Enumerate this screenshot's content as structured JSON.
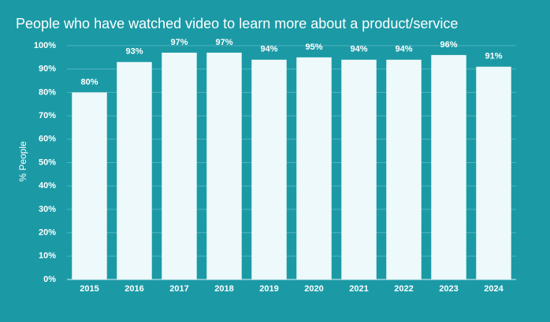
{
  "chart_data": {
    "type": "bar",
    "title": "People who have watched video to learn more about a product/service",
    "y_label": "% People",
    "categories": [
      "2015",
      "2016",
      "2017",
      "2018",
      "2019",
      "2020",
      "2021",
      "2022",
      "2023",
      "2024"
    ],
    "values": [
      80,
      93,
      97,
      97,
      94,
      95,
      94,
      94,
      96,
      91
    ],
    "value_labels": [
      "80%",
      "93%",
      "97%",
      "97%",
      "94%",
      "95%",
      "94%",
      "94%",
      "96%",
      "91%"
    ],
    "color": "#edf9fa",
    "ylim": [
      0,
      100
    ],
    "yticks": [
      {
        "value": 0,
        "label": "0%"
      },
      {
        "value": 10,
        "label": "10%"
      },
      {
        "value": 20,
        "label": "20%"
      },
      {
        "value": 30,
        "label": "30%"
      },
      {
        "value": 40,
        "label": "40%"
      },
      {
        "value": 50,
        "label": "50%"
      },
      {
        "value": 60,
        "label": "60%"
      },
      {
        "value": 70,
        "label": "70%"
      },
      {
        "value": 80,
        "label": "80%"
      },
      {
        "value": 90,
        "label": "90%"
      },
      {
        "value": 100,
        "label": "100%"
      }
    ],
    "grid": true
  }
}
